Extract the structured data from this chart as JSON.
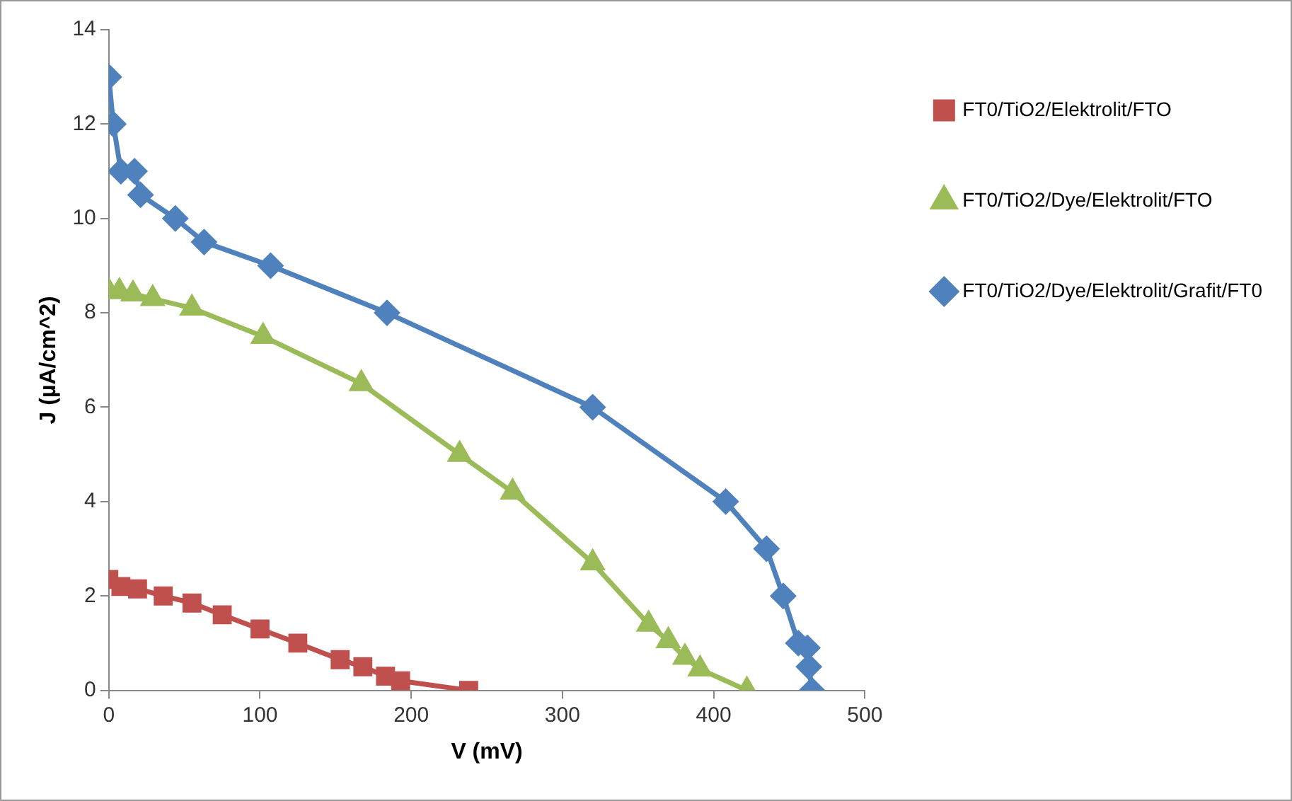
{
  "chart_data": {
    "type": "line",
    "xlabel": "V (mV)",
    "ylabel": "J (µA/cm^2)",
    "xlim": [
      0,
      500
    ],
    "xticks": [
      0,
      100,
      200,
      300,
      400,
      500
    ],
    "ylim": [
      0,
      14
    ],
    "yticks": [
      0,
      2,
      4,
      6,
      8,
      10,
      12,
      14
    ],
    "grid": false,
    "legend": "top right",
    "series": [
      {
        "name": "FT0/TiO2/Elektrolit/FTO",
        "color": "#c0504d",
        "marker": "square",
        "x": [
          0,
          8,
          19,
          36,
          55,
          75,
          100,
          125,
          153,
          168,
          183,
          193,
          238
        ],
        "values": [
          2.35,
          2.2,
          2.15,
          2.0,
          1.85,
          1.6,
          1.3,
          1.0,
          0.65,
          0.5,
          0.3,
          0.2,
          0
        ]
      },
      {
        "name": "FT0/TiO2/Dye/Elektrolit/FTO",
        "color": "#9bbb59",
        "marker": "triangle",
        "x": [
          0,
          7,
          16,
          29,
          55,
          102,
          167,
          232,
          267,
          320,
          357,
          370,
          381,
          391,
          422
        ],
        "values": [
          8.45,
          8.45,
          8.4,
          8.3,
          8.1,
          7.5,
          6.5,
          5.0,
          4.2,
          2.7,
          1.4,
          1.05,
          0.7,
          0.45,
          0
        ]
      },
      {
        "name": "FT0/TiO2/Dye/Elektrolit/Grafit/FT0",
        "color": "#4f81bd",
        "marker": "diamond",
        "x": [
          0,
          3,
          8,
          17,
          21,
          44,
          63,
          107,
          184,
          320,
          408,
          435,
          446,
          456,
          462,
          463,
          465
        ],
        "values": [
          13,
          12,
          11,
          11,
          10.5,
          10,
          9.5,
          9,
          8,
          6,
          4,
          3,
          2,
          1,
          0.9,
          0.5,
          0
        ]
      }
    ]
  }
}
